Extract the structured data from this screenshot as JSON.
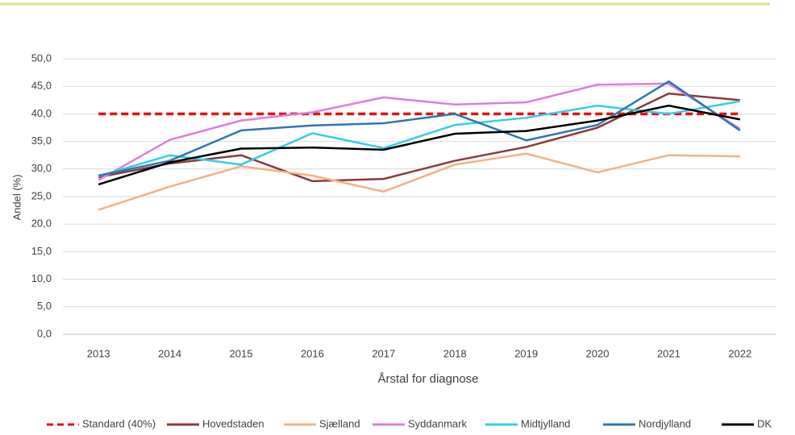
{
  "chart_data": {
    "type": "line",
    "y_label": "Andel (%)",
    "x_label": "Årstal for diagnose",
    "categories": [
      "2013",
      "2014",
      "2015",
      "2016",
      "2017",
      "2018",
      "2019",
      "2020",
      "2021",
      "2022"
    ],
    "ylim": [
      0,
      50
    ],
    "yticks": [
      {
        "value": 0,
        "label": "0,0"
      },
      {
        "value": 5,
        "label": "5,0"
      },
      {
        "value": 10,
        "label": "10,0"
      },
      {
        "value": 15,
        "label": "15,0"
      },
      {
        "value": 20,
        "label": "20,0"
      },
      {
        "value": 25,
        "label": "25,0"
      },
      {
        "value": 30,
        "label": "30,0"
      },
      {
        "value": 35,
        "label": "35,0"
      },
      {
        "value": 40,
        "label": "40,0"
      },
      {
        "value": 45,
        "label": "45,0"
      },
      {
        "value": 50,
        "label": "50,0"
      }
    ],
    "grid": true,
    "legend": "bottom",
    "series": [
      {
        "name": "Standard (40%)",
        "color": "#e3120b",
        "dashed": true,
        "values": [
          40,
          40,
          40,
          40,
          40,
          40,
          40,
          40,
          40,
          40
        ]
      },
      {
        "name": "Hovedstaden",
        "color": "#8b3a3a",
        "values": [
          28.5,
          31,
          32.5,
          27.8,
          28.2,
          31.5,
          34,
          37.5,
          43.7,
          42.5
        ]
      },
      {
        "name": "Sjælland",
        "color": "#f4b183",
        "values": [
          22.6,
          26.8,
          30.5,
          28.8,
          25.9,
          30.8,
          32.8,
          29.4,
          32.5,
          32.3
        ]
      },
      {
        "name": "Syddanmark",
        "color": "#e07be0",
        "values": [
          28,
          35.3,
          38.8,
          40.3,
          43,
          41.7,
          42.1,
          45.3,
          45.5,
          37.3
        ]
      },
      {
        "name": "Midtjylland",
        "color": "#33ccee",
        "values": [
          28.7,
          32.5,
          30.8,
          36.5,
          33.8,
          38,
          39.3,
          41.5,
          40,
          42.3
        ]
      },
      {
        "name": "Nordjylland",
        "color": "#2e75b6",
        "values": [
          28.8,
          31.5,
          37,
          37.9,
          38.3,
          40,
          35.2,
          38,
          45.9,
          37
        ]
      },
      {
        "name": "DK",
        "color": "#000000",
        "values": [
          27.2,
          31.2,
          33.7,
          33.9,
          33.5,
          36.4,
          36.9,
          38.8,
          41.5,
          39
        ]
      }
    ]
  }
}
